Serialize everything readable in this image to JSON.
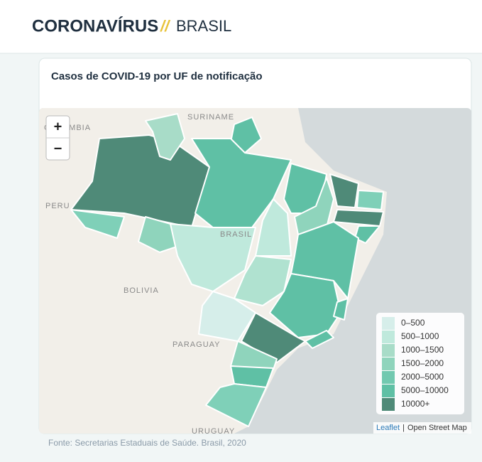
{
  "header": {
    "title": "CORONAVÍRUS",
    "separator": "//",
    "subtitle": "BRASIL"
  },
  "card": {
    "title": "Casos de COVID-19 por UF de notificação"
  },
  "zoom": {
    "in": "+",
    "out": "−"
  },
  "map_labels": {
    "suriname": "SURINAME",
    "colombia": "COLOMBIA",
    "peru": "PERU",
    "brasil": "BRASIL",
    "bolivia": "BOLIVIA",
    "paraguay": "PARAGUAY",
    "uruguay": "URUGUAY"
  },
  "legend": [
    {
      "label": "0–500",
      "color": "#d6eeea"
    },
    {
      "label": "500–1000",
      "color": "#bfe9dc"
    },
    {
      "label": "1000–1500",
      "color": "#a8dcc8"
    },
    {
      "label": "1500–2000",
      "color": "#8fd4bc"
    },
    {
      "label": "2000–5000",
      "color": "#72c9b0"
    },
    {
      "label": "5000–10000",
      "color": "#5fc0a5"
    },
    {
      "label": "10000+",
      "color": "#4f8a78"
    }
  ],
  "attribution": {
    "leaflet": "Leaflet",
    "sep": "|",
    "osm": "Open Street Map"
  },
  "footer": "Fonte: Secretarias Estaduais de Saúde. Brasil, 2020"
}
